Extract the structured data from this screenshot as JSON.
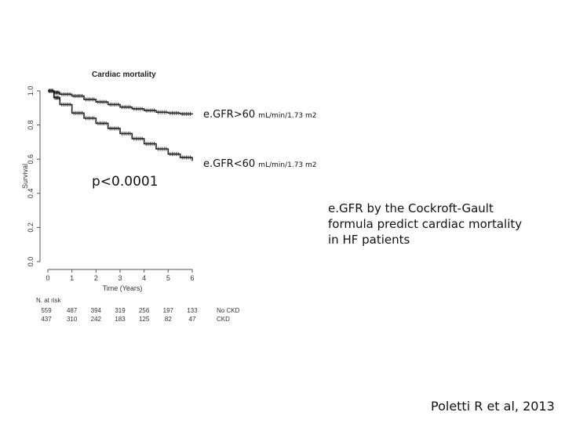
{
  "chart_data": {
    "type": "line",
    "title": "Cardiac mortality",
    "xlabel": "Time (Years)",
    "ylabel": "Survival",
    "xlim": [
      0,
      6
    ],
    "ylim": [
      0.0,
      1.0
    ],
    "x_ticks": [
      "0",
      "1",
      "2",
      "3",
      "4",
      "5",
      "6"
    ],
    "y_ticks": [
      "0.0",
      "0.2",
      "0.4",
      "0.6",
      "0.8",
      "1.0"
    ],
    "series": [
      {
        "name": "e.GFR>60",
        "unit": "mL/min/1.73 m2",
        "x": [
          0,
          0.25,
          0.5,
          1,
          1.5,
          2,
          2.5,
          3,
          3.5,
          4,
          4.5,
          5,
          5.5,
          6
        ],
        "y": [
          1.0,
          0.99,
          0.98,
          0.97,
          0.95,
          0.935,
          0.92,
          0.905,
          0.895,
          0.885,
          0.875,
          0.87,
          0.865,
          0.862
        ]
      },
      {
        "name": "e.GFR<60",
        "unit": "mL/min/1.73 m2",
        "x": [
          0,
          0.25,
          0.5,
          1,
          1.5,
          2,
          2.5,
          3,
          3.5,
          4,
          4.5,
          5,
          5.5,
          6
        ],
        "y": [
          1.0,
          0.96,
          0.92,
          0.87,
          0.84,
          0.81,
          0.78,
          0.75,
          0.72,
          0.69,
          0.66,
          0.63,
          0.61,
          0.59
        ]
      }
    ],
    "risk_table": {
      "title": "N. at risk",
      "rows": [
        {
          "label": "No CKD",
          "values": [
            "559",
            "487",
            "394",
            "319",
            "256",
            "197",
            "133"
          ]
        },
        {
          "label": "CKD",
          "values": [
            "437",
            "310",
            "242",
            "183",
            "125",
            "82",
            "47"
          ]
        }
      ]
    }
  },
  "annotations": {
    "p_value": "p<0.0001",
    "note": "e.GFR by the Cockroft-Gault formula predict cardiac mortality in HF patients",
    "citation": "Poletti R et al, 2013"
  }
}
